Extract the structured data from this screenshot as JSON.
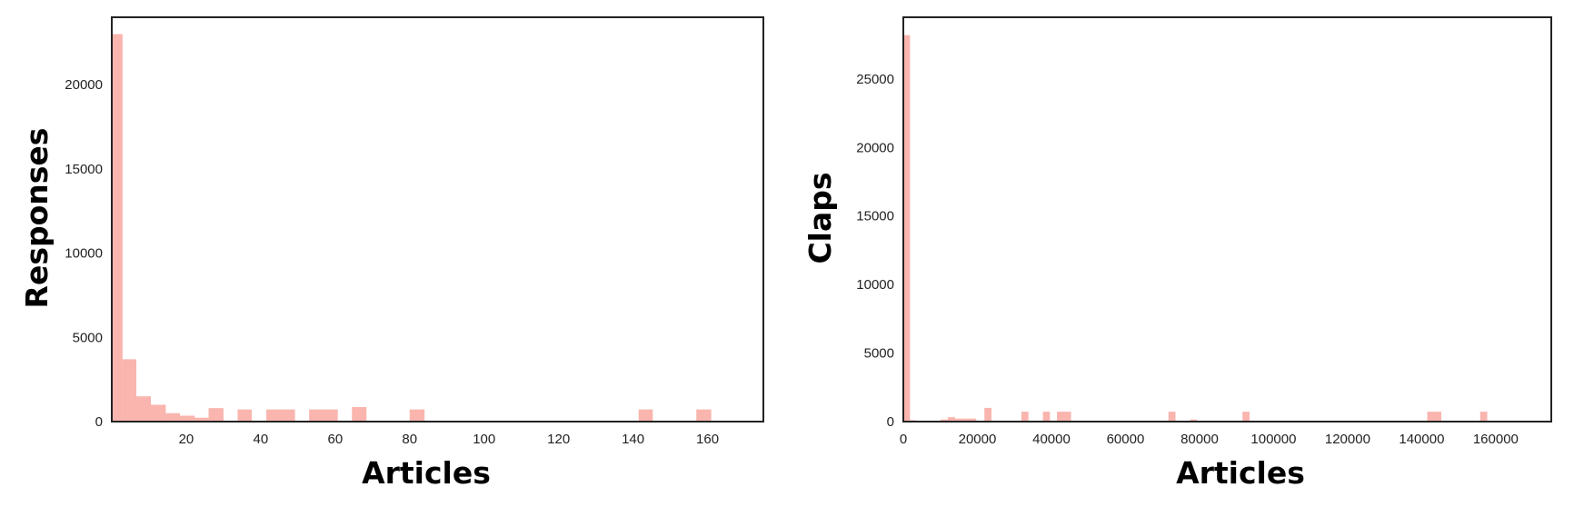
{
  "chart_data": [
    {
      "type": "bar",
      "xlabel": "Articles",
      "ylabel": "Responses",
      "xlim": [
        0,
        175
      ],
      "ylim": [
        0,
        24000
      ],
      "xticks": [
        20,
        40,
        60,
        80,
        100,
        120,
        140,
        160
      ],
      "yticks": [
        0,
        5000,
        10000,
        15000,
        20000
      ],
      "grid": false,
      "bar_color": "#f9b5ae",
      "bins": [
        {
          "x0": 0,
          "x1": 2.9,
          "value": 23000
        },
        {
          "x0": 2.9,
          "x1": 6.6,
          "value": 3700
        },
        {
          "x0": 6.6,
          "x1": 10.5,
          "value": 1500
        },
        {
          "x0": 10.5,
          "x1": 14.5,
          "value": 1000
        },
        {
          "x0": 14.5,
          "x1": 18.3,
          "value": 500
        },
        {
          "x0": 18.3,
          "x1": 22.3,
          "value": 350
        },
        {
          "x0": 22.3,
          "x1": 26.0,
          "value": 230
        },
        {
          "x0": 26.0,
          "x1": 30.0,
          "value": 800
        },
        {
          "x0": 33.8,
          "x1": 37.6,
          "value": 720
        },
        {
          "x0": 41.5,
          "x1": 49.2,
          "value": 720
        },
        {
          "x0": 53.0,
          "x1": 60.7,
          "value": 720
        },
        {
          "x0": 64.5,
          "x1": 68.4,
          "value": 860
        },
        {
          "x0": 80.0,
          "x1": 84.0,
          "value": 720
        },
        {
          "x0": 141.5,
          "x1": 145.3,
          "value": 720
        },
        {
          "x0": 157.0,
          "x1": 161.0,
          "value": 720
        }
      ]
    },
    {
      "type": "bar",
      "xlabel": "Articles",
      "ylabel": "Claps",
      "xlim": [
        0,
        175000
      ],
      "ylim": [
        0,
        29500
      ],
      "xticks": [
        0,
        20000,
        40000,
        60000,
        80000,
        100000,
        120000,
        140000,
        160000
      ],
      "yticks": [
        0,
        5000,
        10000,
        15000,
        20000,
        25000
      ],
      "grid": false,
      "bar_color": "#f9b5ae",
      "bins": [
        {
          "x0": 0,
          "x1": 1800,
          "value": 28200
        },
        {
          "x0": 1800,
          "x1": 3600,
          "value": 100
        },
        {
          "x0": 10000,
          "x1": 12000,
          "value": 150
        },
        {
          "x0": 12000,
          "x1": 14000,
          "value": 320
        },
        {
          "x0": 14000,
          "x1": 19700,
          "value": 220
        },
        {
          "x0": 21900,
          "x1": 23800,
          "value": 1000
        },
        {
          "x0": 31900,
          "x1": 33800,
          "value": 720
        },
        {
          "x0": 37700,
          "x1": 39600,
          "value": 720
        },
        {
          "x0": 41500,
          "x1": 45300,
          "value": 720
        },
        {
          "x0": 71600,
          "x1": 73500,
          "value": 720
        },
        {
          "x0": 77400,
          "x1": 79300,
          "value": 150
        },
        {
          "x0": 91600,
          "x1": 93500,
          "value": 720
        },
        {
          "x0": 141500,
          "x1": 145300,
          "value": 720
        },
        {
          "x0": 155800,
          "x1": 157700,
          "value": 720
        }
      ]
    }
  ]
}
